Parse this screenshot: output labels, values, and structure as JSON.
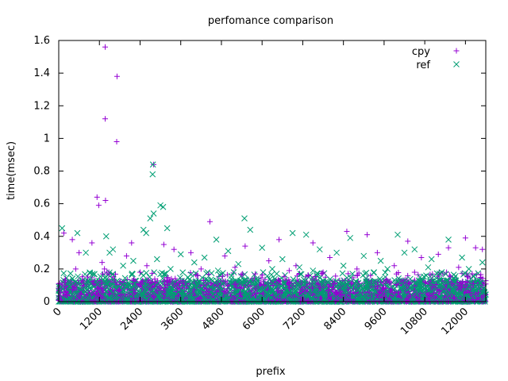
{
  "chart_data": {
    "type": "scatter",
    "title": "perfomance comparison",
    "xlabel": "prefix",
    "ylabel": "time(msec)",
    "xlim": [
      0,
      12600
    ],
    "ylim": [
      0,
      1.6
    ],
    "xticks": [
      "0",
      "1200",
      "2400",
      "3600",
      "4800",
      "6000",
      "7200",
      "8400",
      "9600",
      "10800",
      "12000"
    ],
    "yticks": [
      "0",
      "0.2",
      "0.4",
      "0.6",
      "0.8",
      "1",
      "1.2",
      "1.4",
      "1.6"
    ],
    "grid": false,
    "legend_position": "top-right",
    "series": [
      {
        "name": "cpy",
        "marker": "plus",
        "color": "#9400d3",
        "points": [
          [
            1370,
            1.56
          ],
          [
            1720,
            1.38
          ],
          [
            1370,
            1.12
          ],
          [
            1710,
            0.98
          ],
          [
            1130,
            0.64
          ],
          [
            1380,
            0.62
          ],
          [
            1180,
            0.59
          ],
          [
            2800,
            0.84
          ],
          [
            4460,
            0.49
          ],
          [
            1280,
            0.24
          ],
          [
            1350,
            0.2
          ],
          [
            1420,
            0.18
          ],
          [
            1300,
            0.17
          ],
          [
            400,
            0.38
          ],
          [
            980,
            0.36
          ],
          [
            2150,
            0.36
          ],
          [
            3100,
            0.35
          ],
          [
            5500,
            0.34
          ],
          [
            6500,
            0.38
          ],
          [
            7500,
            0.36
          ],
          [
            8500,
            0.43
          ],
          [
            9100,
            0.41
          ],
          [
            10300,
            0.37
          ],
          [
            11500,
            0.33
          ],
          [
            12000,
            0.39
          ],
          [
            12300,
            0.33
          ],
          [
            150,
            0.42
          ],
          [
            600,
            0.3
          ],
          [
            2600,
            0.22
          ],
          [
            3900,
            0.3
          ],
          [
            4900,
            0.28
          ],
          [
            6200,
            0.25
          ],
          [
            7000,
            0.22
          ],
          [
            8000,
            0.27
          ],
          [
            9400,
            0.3
          ],
          [
            10700,
            0.27
          ],
          [
            11200,
            0.29
          ],
          [
            2000,
            0.28
          ],
          [
            3400,
            0.32
          ],
          [
            5200,
            0.21
          ],
          [
            6800,
            0.19
          ],
          [
            8800,
            0.2
          ],
          [
            9900,
            0.22
          ],
          [
            11800,
            0.21
          ],
          [
            12500,
            0.32
          ],
          [
            500,
            0.2
          ],
          [
            2400,
            0.18
          ],
          [
            4200,
            0.2
          ],
          [
            5800,
            0.17
          ],
          [
            7800,
            0.18
          ],
          [
            9200,
            0.16
          ],
          [
            10500,
            0.18
          ],
          [
            12200,
            0.17
          ]
        ]
      },
      {
        "name": "ref",
        "marker": "x",
        "color": "#009e73",
        "points": [
          [
            2780,
            0.84
          ],
          [
            2770,
            0.78
          ],
          [
            3000,
            0.59
          ],
          [
            3080,
            0.58
          ],
          [
            2800,
            0.54
          ],
          [
            2700,
            0.51
          ],
          [
            2500,
            0.44
          ],
          [
            2580,
            0.42
          ],
          [
            5480,
            0.51
          ],
          [
            100,
            0.45
          ],
          [
            550,
            0.42
          ],
          [
            1400,
            0.4
          ],
          [
            3200,
            0.45
          ],
          [
            4650,
            0.38
          ],
          [
            5650,
            0.44
          ],
          [
            6900,
            0.42
          ],
          [
            7300,
            0.41
          ],
          [
            8600,
            0.39
          ],
          [
            10000,
            0.41
          ],
          [
            10500,
            0.32
          ],
          [
            11500,
            0.38
          ],
          [
            12500,
            0.24
          ],
          [
            800,
            0.3
          ],
          [
            1600,
            0.32
          ],
          [
            2200,
            0.25
          ],
          [
            3600,
            0.29
          ],
          [
            4300,
            0.27
          ],
          [
            5000,
            0.31
          ],
          [
            6000,
            0.33
          ],
          [
            6600,
            0.26
          ],
          [
            7700,
            0.32
          ],
          [
            8200,
            0.3
          ],
          [
            9000,
            0.28
          ],
          [
            9500,
            0.25
          ],
          [
            10200,
            0.3
          ],
          [
            11000,
            0.26
          ],
          [
            11900,
            0.27
          ],
          [
            1900,
            0.22
          ],
          [
            2900,
            0.26
          ],
          [
            4000,
            0.24
          ],
          [
            5300,
            0.23
          ],
          [
            7100,
            0.21
          ],
          [
            8400,
            0.22
          ],
          [
            9700,
            0.2
          ],
          [
            10900,
            0.21
          ],
          [
            12100,
            0.2
          ],
          [
            1500,
            0.3
          ],
          [
            3300,
            0.2
          ],
          [
            4700,
            0.19
          ],
          [
            6300,
            0.2
          ],
          [
            7500,
            0.19
          ],
          [
            9300,
            0.18
          ],
          [
            11300,
            0.18
          ]
        ]
      }
    ]
  }
}
